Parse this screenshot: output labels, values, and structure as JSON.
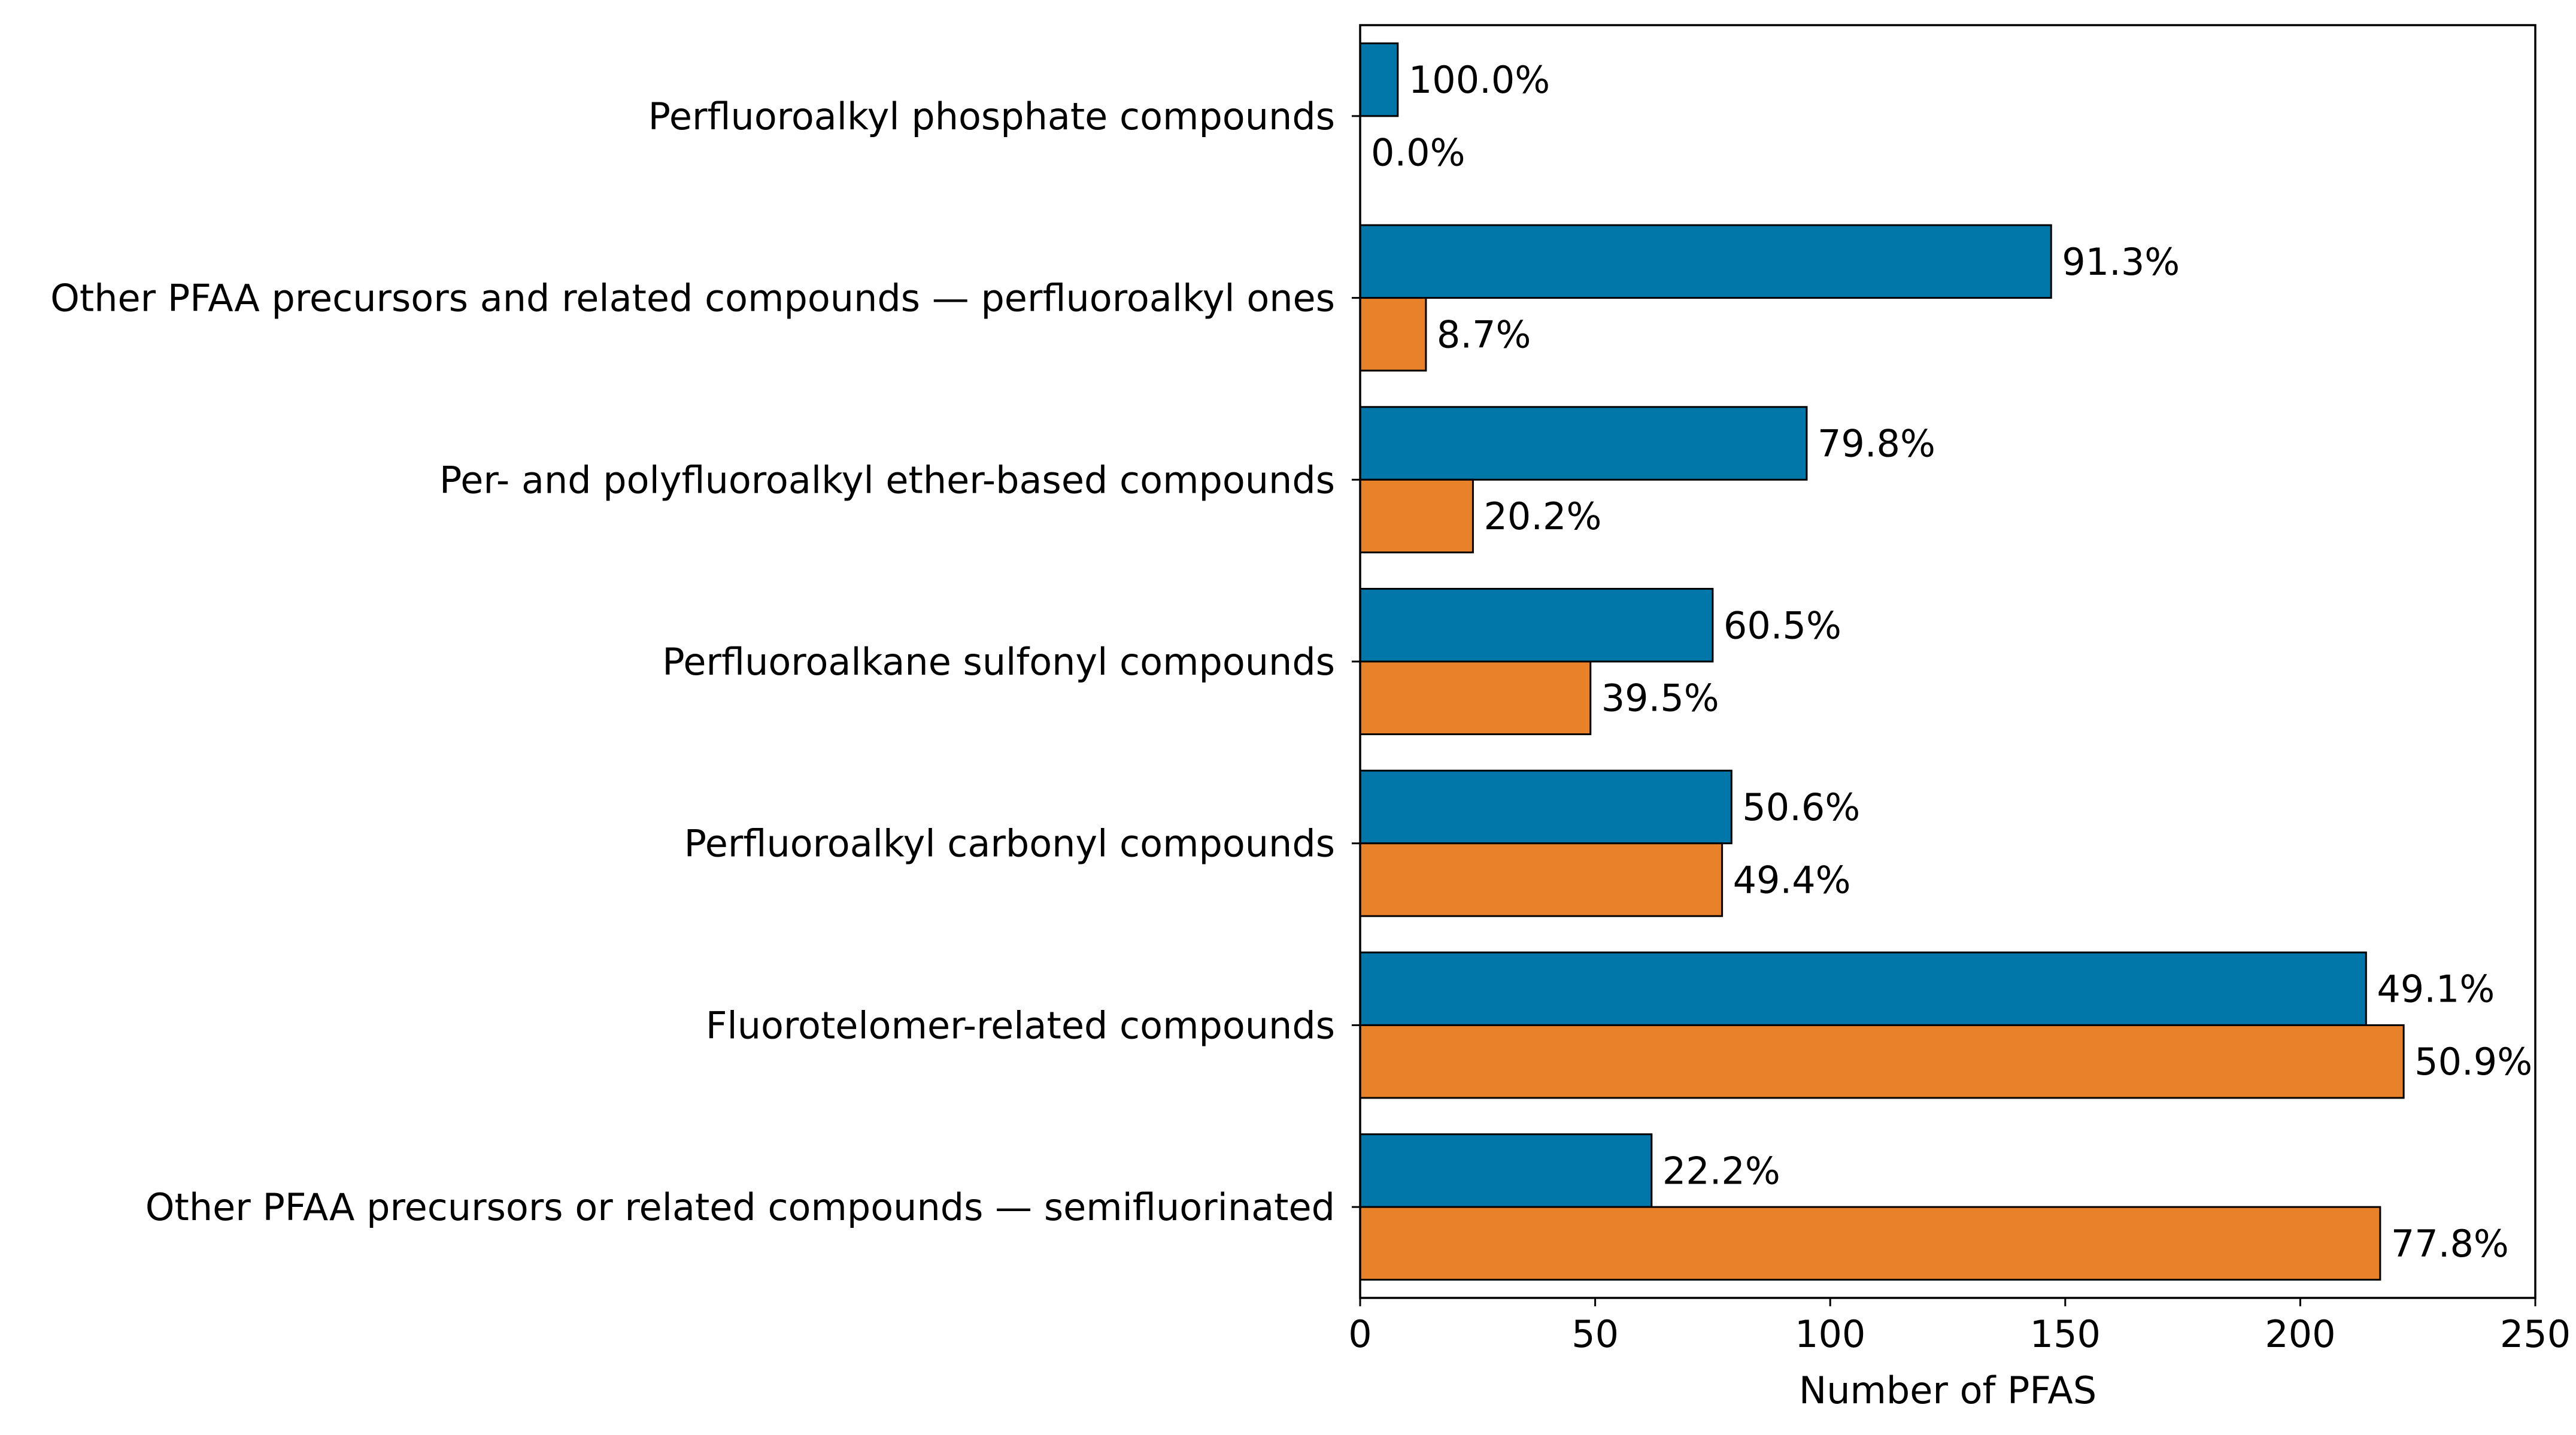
{
  "chart_data": {
    "type": "bar",
    "orientation": "horizontal",
    "title": "",
    "xlabel": "Number of PFAS",
    "ylabel": "",
    "xlim": [
      0,
      250
    ],
    "xticks": [
      0,
      50,
      100,
      150,
      200,
      250
    ],
    "xtick_labels": [
      "0",
      "50",
      "100",
      "150",
      "200",
      "250"
    ],
    "grid": false,
    "legend": null,
    "categories": [
      "Perfluoroalkyl phosphate compounds",
      "Other PFAA precursors and related compounds — perfluoroalkyl ones",
      "Per- and polyfluoroalkyl ether-based compounds",
      "Perfluoroalkane sulfonyl compounds",
      "Perfluoroalkyl carbonyl compounds",
      "Fluorotelomer-related compounds",
      "Other PFAA precursors or related compounds — semifluorinated"
    ],
    "series": [
      {
        "name": "series-1",
        "color": "#0077a8",
        "values": [
          8,
          147,
          95,
          75,
          79,
          214,
          62
        ],
        "labels": [
          "100.0%",
          "91.3%",
          "79.8%",
          "60.5%",
          "50.6%",
          "49.1%",
          "22.2%"
        ]
      },
      {
        "name": "series-2",
        "color": "#e8822a",
        "values": [
          0,
          14,
          24,
          49,
          77,
          222,
          217
        ],
        "labels": [
          "0.0%",
          "8.7%",
          "20.2%",
          "39.5%",
          "49.4%",
          "50.9%",
          "77.8%"
        ]
      }
    ]
  }
}
